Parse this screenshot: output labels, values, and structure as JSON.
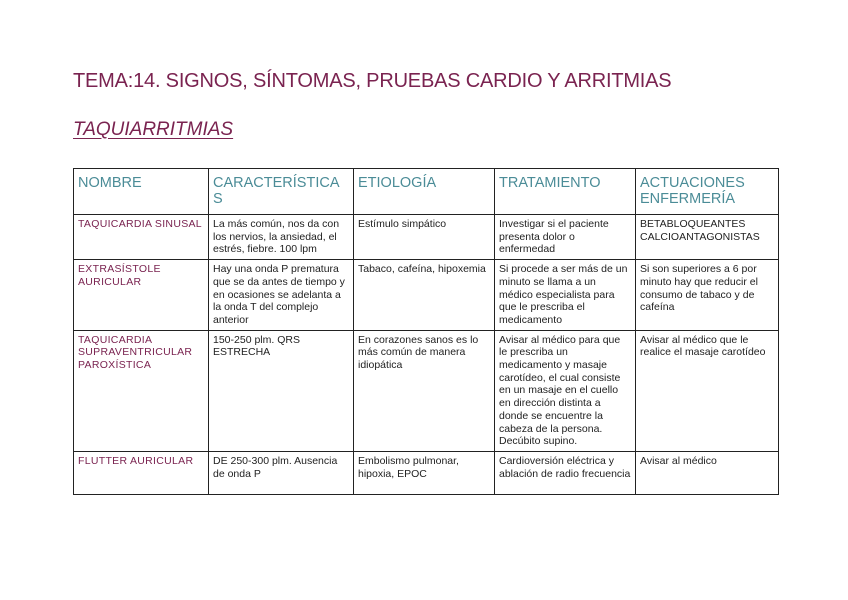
{
  "document": {
    "title": "TEMA:14. SIGNOS, SÍNTOMAS, PRUEBAS CARDIO Y ARRITMIAS",
    "subtitle": "TAQUIARRITMIAS",
    "colors": {
      "title": "#7a2350",
      "header": "#4b8c97"
    }
  },
  "table": {
    "headers": [
      "NOMBRE",
      "CARACTERÍSTICAS",
      "ETIOLOGÍA",
      "TRATAMIENTO",
      "ACTUACIONES ENFERMERÍA"
    ],
    "rows": [
      [
        "TAQUICARDIA SINUSAL",
        "La más común, nos da con los nervios, la ansiedad, el estrés, fiebre. 100 lpm",
        "Estímulo simpático",
        "Investigar si el paciente presenta dolor o enfermedad",
        "BETABLOQUEANTES CALCIOANTAGONISTAS"
      ],
      [
        "EXTRASÍSTOLE AURICULAR",
        "Hay una onda P prematura que se da antes de tiempo y en ocasiones se adelanta a la onda T del complejo anterior",
        "Tabaco, cafeína, hipoxemia",
        "Si procede a ser más de un minuto se llama a un médico especialista para que le prescriba el medicamento",
        "Si son superiores a 6 por minuto hay que reducir el consumo de tabaco y de cafeína"
      ],
      [
        "TAQUICARDIA SUPRAVENTRICULAR PAROXÍSTICA",
        "150-250 plm. QRS ESTRECHA",
        "En corazones sanos es lo más común de manera idiopática",
        "Avisar al médico para que le prescriba un medicamento y masaje carotídeo, el cual consiste en un masaje en el cuello en dirección distinta a donde se encuentre la cabeza de la persona. Decúbito supino.",
        "Avisar al médico que le realice el masaje carotídeo"
      ],
      [
        "FLUTTER AURICULAR",
        "DE 250-300 plm. Ausencia de onda P",
        "Embolismo pulmonar, hipoxia, EPOC",
        "Cardioversión eléctrica y ablación de radio frecuencia",
        "Avisar al médico"
      ]
    ]
  }
}
